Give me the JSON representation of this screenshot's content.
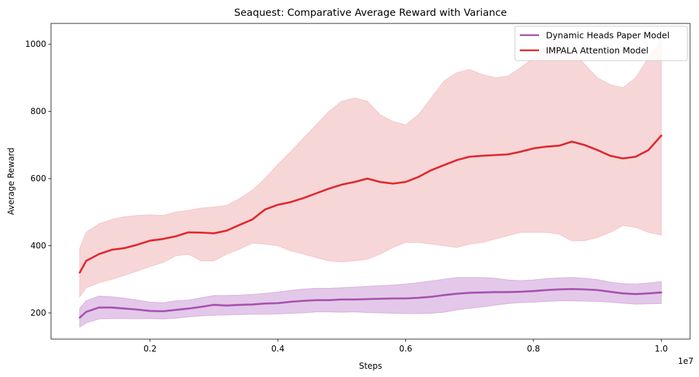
{
  "chart_data": {
    "type": "line",
    "title": "Seaquest: Comparative Average Reward with Variance",
    "xlabel": "Steps",
    "ylabel": "Average Reward",
    "x_offset_label": "1e7",
    "xlim": [
      0.045,
      1.045
    ],
    "ylim": [
      122,
      1062
    ],
    "x_ticks": [
      0.2,
      0.4,
      0.6,
      0.8,
      1.0
    ],
    "x_tick_labels": [
      "0.2",
      "0.4",
      "0.6",
      "0.8",
      "1.0"
    ],
    "y_ticks": [
      200,
      400,
      600,
      800,
      1000
    ],
    "y_tick_labels": [
      "200",
      "400",
      "600",
      "800",
      "1000"
    ],
    "grid": false,
    "legend_position": "top-right",
    "x": [
      0.09,
      0.1,
      0.12,
      0.14,
      0.16,
      0.18,
      0.2,
      0.22,
      0.24,
      0.26,
      0.28,
      0.3,
      0.32,
      0.34,
      0.36,
      0.38,
      0.4,
      0.42,
      0.44,
      0.46,
      0.48,
      0.5,
      0.52,
      0.54,
      0.56,
      0.58,
      0.6,
      0.62,
      0.64,
      0.66,
      0.68,
      0.7,
      0.72,
      0.74,
      0.76,
      0.78,
      0.8,
      0.82,
      0.84,
      0.86,
      0.88,
      0.9,
      0.92,
      0.94,
      0.96,
      0.98,
      1.0
    ],
    "series": [
      {
        "name": "Dynamic Heads Paper Model",
        "color": "#a653b0",
        "fill_color": "#d9b0df",
        "values": [
          186,
          203,
          216,
          216,
          213,
          210,
          206,
          205,
          209,
          213,
          218,
          224,
          222,
          224,
          225,
          228,
          229,
          233,
          236,
          238,
          238,
          240,
          240,
          241,
          242,
          243,
          243,
          245,
          248,
          253,
          257,
          260,
          261,
          262,
          262,
          263,
          265,
          268,
          270,
          271,
          270,
          268,
          263,
          258,
          256,
          258,
          261
        ],
        "lower": [
          158,
          170,
          182,
          183,
          183,
          183,
          183,
          182,
          184,
          188,
          191,
          193,
          194,
          195,
          196,
          196,
          197,
          199,
          200,
          203,
          203,
          202,
          203,
          201,
          200,
          199,
          198,
          198,
          199,
          202,
          209,
          214,
          218,
          223,
          228,
          231,
          232,
          234,
          236,
          236,
          235,
          234,
          232,
          229,
          226,
          227,
          228
        ],
        "upper": [
          214,
          236,
          250,
          248,
          244,
          238,
          232,
          230,
          236,
          238,
          245,
          252,
          252,
          253,
          255,
          258,
          262,
          267,
          271,
          273,
          273,
          275,
          277,
          279,
          281,
          283,
          286,
          290,
          295,
          300,
          305,
          305,
          305,
          303,
          298,
          296,
          298,
          302,
          304,
          305,
          303,
          299,
          292,
          287,
          286,
          289,
          293
        ]
      },
      {
        "name": "IMPALA Attention Model",
        "color": "#e0282e",
        "fill_color": "#f4c5c8",
        "values": [
          320,
          355,
          375,
          388,
          393,
          403,
          415,
          420,
          428,
          440,
          439,
          437,
          445,
          462,
          478,
          508,
          522,
          530,
          542,
          556,
          570,
          582,
          590,
          600,
          590,
          585,
          590,
          605,
          625,
          640,
          655,
          665,
          668,
          670,
          672,
          680,
          690,
          695,
          698,
          710,
          700,
          685,
          668,
          660,
          665,
          685,
          728
        ],
        "lower": [
          248,
          275,
          290,
          300,
          312,
          325,
          338,
          350,
          370,
          375,
          355,
          355,
          375,
          390,
          408,
          405,
          400,
          385,
          375,
          365,
          355,
          352,
          355,
          360,
          375,
          395,
          410,
          410,
          405,
          400,
          395,
          405,
          410,
          420,
          430,
          440,
          440,
          440,
          435,
          415,
          415,
          425,
          440,
          460,
          455,
          440,
          432
        ],
        "upper": [
          392,
          440,
          465,
          478,
          486,
          490,
          492,
          490,
          500,
          505,
          512,
          515,
          520,
          540,
          565,
          600,
          642,
          680,
          720,
          760,
          800,
          830,
          840,
          830,
          790,
          770,
          760,
          790,
          840,
          890,
          915,
          925,
          910,
          900,
          905,
          930,
          960,
          990,
          1010,
          990,
          940,
          900,
          880,
          870,
          900,
          960,
          1015
        ]
      }
    ]
  }
}
